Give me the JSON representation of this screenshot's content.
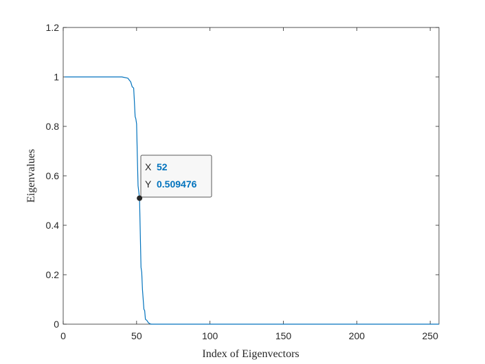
{
  "chart_data": {
    "type": "line",
    "title": "",
    "xlabel": "Index of Eigenvectors",
    "ylabel": "Eigenvalues",
    "xlim": [
      0,
      256
    ],
    "ylim": [
      0,
      1.2
    ],
    "xticks": [
      0,
      50,
      100,
      150,
      200,
      250
    ],
    "yticks": [
      0,
      0.2,
      0.4,
      0.6,
      0.8,
      1,
      1.2
    ],
    "xtick_labels": [
      "0",
      "50",
      "100",
      "150",
      "200",
      "250"
    ],
    "ytick_labels": [
      "0",
      "0.2",
      "0.4",
      "0.6",
      "0.8",
      "1",
      "1.2"
    ],
    "grid": false,
    "line_color": "#0072bd",
    "series": [
      {
        "x": [
          1,
          40,
          44,
          46,
          47,
          48,
          48.5,
          49,
          49.5,
          50,
          50.5,
          51,
          52,
          53,
          53.5,
          54,
          55,
          55.5,
          56,
          57,
          58,
          59,
          60,
          256
        ],
        "y": [
          1,
          1,
          0.995,
          0.98,
          0.96,
          0.955,
          0.9,
          0.84,
          0.83,
          0.81,
          0.68,
          0.56,
          0.509476,
          0.23,
          0.21,
          0.14,
          0.06,
          0.055,
          0.02,
          0.015,
          0.006,
          0.002,
          0,
          0
        ]
      }
    ],
    "datatip": {
      "x_key": "X",
      "x_value": "52",
      "y_key": "Y",
      "y_value": "0.509476",
      "x": 52,
      "y": 0.509476
    }
  }
}
